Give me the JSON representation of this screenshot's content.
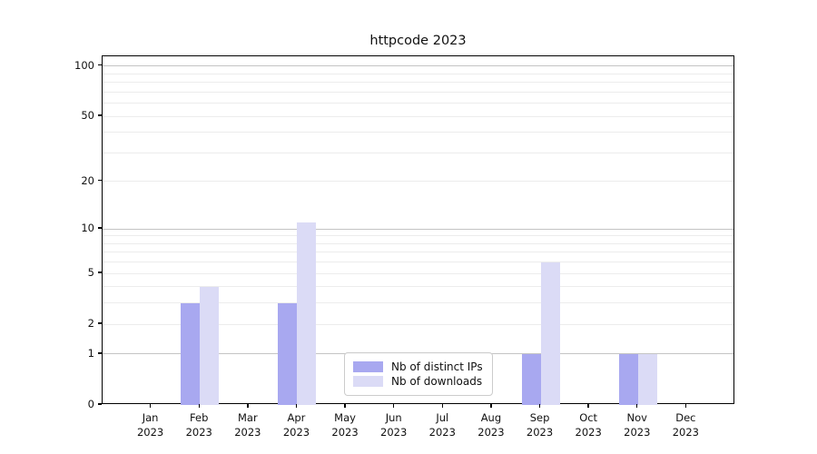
{
  "title": "httpcode 2023",
  "colors": {
    "ips_bar": "#a8a8f0",
    "downloads_bar": "#dbdbf6",
    "grid_minor": "#ececec",
    "grid_major": "#c4c4c4",
    "axis": "#000000",
    "legend_border": "#cccccc"
  },
  "legend": {
    "items": [
      {
        "label": "Nb of distinct IPs",
        "color": "#a8a8f0"
      },
      {
        "label": "Nb of downloads",
        "color": "#dbdbf6"
      }
    ]
  },
  "chart_data": {
    "type": "bar",
    "title": "httpcode 2023",
    "categories": [
      "Jan 2023",
      "Feb 2023",
      "Mar 2023",
      "Apr 2023",
      "May 2023",
      "Jun 2023",
      "Jul 2023",
      "Aug 2023",
      "Sep 2023",
      "Oct 2023",
      "Nov 2023",
      "Dec 2023"
    ],
    "series": [
      {
        "name": "Nb of distinct IPs",
        "key": "ips",
        "color": "#a8a8f0",
        "values": [
          0,
          3,
          0,
          3,
          0,
          0,
          0,
          0,
          1,
          0,
          1,
          0
        ]
      },
      {
        "name": "Nb of downloads",
        "key": "downloads",
        "color": "#dbdbf6",
        "values": [
          0,
          4,
          0,
          11,
          0,
          0,
          0,
          0,
          6,
          0,
          1,
          0
        ]
      }
    ],
    "xlabel": "",
    "ylabel": "",
    "yscale": "log10(1+x)",
    "ylim": [
      0,
      115
    ],
    "yticks": [
      0,
      1,
      2,
      5,
      10,
      20,
      50,
      100
    ],
    "major_gridlines": [
      1,
      10,
      100
    ],
    "minor_gridlines": [
      2,
      3,
      4,
      5,
      6,
      7,
      8,
      9,
      20,
      30,
      40,
      50,
      60,
      70,
      80,
      90
    ],
    "grid": "horizontal",
    "legend_position": "inside-bottom-center"
  }
}
